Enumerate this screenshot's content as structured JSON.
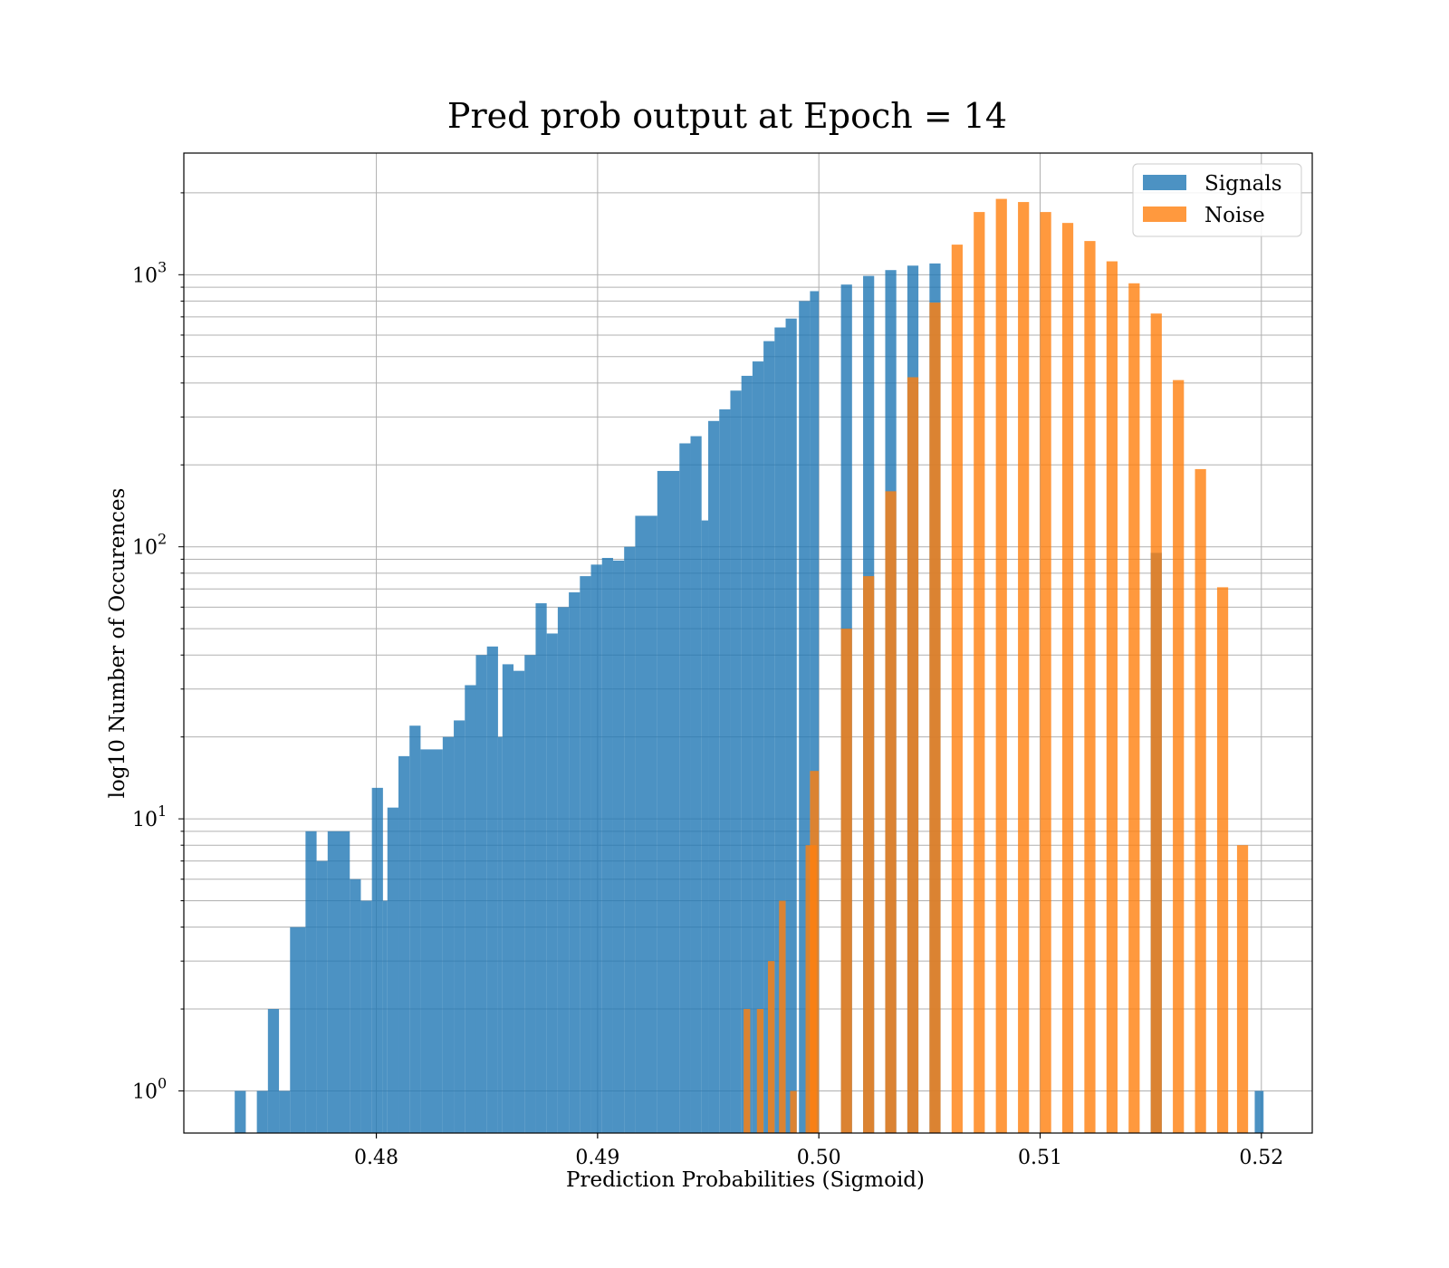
{
  "chart_data": {
    "type": "bar",
    "title": "Pred prob output at Epoch = 14",
    "xlabel": "Prediction Probabilities (Sigmoid)",
    "ylabel": "log10 Number of Occurences",
    "x_scale": "linear",
    "y_scale": "log",
    "xlim": [
      0.4713,
      0.5223
    ],
    "ylim": [
      0.7,
      2800
    ],
    "x_ticks": [
      0.48,
      0.49,
      0.5,
      0.51,
      0.52
    ],
    "x_tick_labels": [
      "0.48",
      "0.49",
      "0.50",
      "0.51",
      "0.52"
    ],
    "y_ticks": [
      1,
      10,
      100,
      1000
    ],
    "y_tick_labels": [
      {
        "base": "10",
        "exp": "0"
      },
      {
        "base": "10",
        "exp": "1"
      },
      {
        "base": "10",
        "exp": "2"
      },
      {
        "base": "10",
        "exp": "3"
      }
    ],
    "grid": true,
    "legend_position": "upper right",
    "series": [
      {
        "name": "Signals",
        "color": "#1f77b4",
        "opacity": 0.8,
        "bins": [
          [
            0.4736,
            0.4741,
            1
          ],
          [
            0.4746,
            0.4751,
            1
          ],
          [
            0.4751,
            0.4756,
            2
          ],
          [
            0.4756,
            0.4761,
            1
          ],
          [
            0.4761,
            0.4768,
            4
          ],
          [
            0.4768,
            0.4773,
            9
          ],
          [
            0.4773,
            0.4778,
            7
          ],
          [
            0.4778,
            0.4788,
            9
          ],
          [
            0.4788,
            0.4793,
            6
          ],
          [
            0.4793,
            0.4798,
            5
          ],
          [
            0.4798,
            0.4803,
            13
          ],
          [
            0.4803,
            0.4805,
            5
          ],
          [
            0.4805,
            0.481,
            11
          ],
          [
            0.481,
            0.4815,
            17
          ],
          [
            0.4815,
            0.482,
            22
          ],
          [
            0.482,
            0.483,
            18
          ],
          [
            0.483,
            0.4835,
            20
          ],
          [
            0.4835,
            0.484,
            23
          ],
          [
            0.484,
            0.4845,
            31
          ],
          [
            0.4845,
            0.485,
            40
          ],
          [
            0.485,
            0.4855,
            43
          ],
          [
            0.4855,
            0.4857,
            20
          ],
          [
            0.4857,
            0.4862,
            37
          ],
          [
            0.4862,
            0.4867,
            35
          ],
          [
            0.4867,
            0.4872,
            40
          ],
          [
            0.4872,
            0.4877,
            62
          ],
          [
            0.4877,
            0.4882,
            48
          ],
          [
            0.4882,
            0.4887,
            60
          ],
          [
            0.4887,
            0.4892,
            68
          ],
          [
            0.4892,
            0.4897,
            78
          ],
          [
            0.4897,
            0.4902,
            86
          ],
          [
            0.4902,
            0.4907,
            91
          ],
          [
            0.4907,
            0.4912,
            89
          ],
          [
            0.4912,
            0.4917,
            100
          ],
          [
            0.4917,
            0.4927,
            130
          ],
          [
            0.4927,
            0.4937,
            190
          ],
          [
            0.4937,
            0.4942,
            240
          ],
          [
            0.4942,
            0.4947,
            255
          ],
          [
            0.4947,
            0.495,
            125
          ],
          [
            0.495,
            0.4955,
            290
          ],
          [
            0.4955,
            0.496,
            320
          ],
          [
            0.496,
            0.4965,
            375
          ],
          [
            0.4965,
            0.497,
            425
          ],
          [
            0.497,
            0.4975,
            480
          ],
          [
            0.4975,
            0.498,
            570
          ],
          [
            0.498,
            0.4985,
            640
          ],
          [
            0.4985,
            0.499,
            690
          ],
          [
            0.4991,
            0.4996,
            800
          ],
          [
            0.4996,
            0.5,
            870
          ],
          [
            0.501,
            0.5015,
            920
          ],
          [
            0.502,
            0.5025,
            990
          ],
          [
            0.503,
            0.5035,
            1040
          ],
          [
            0.504,
            0.5045,
            1080
          ],
          [
            0.505,
            0.5055,
            1100
          ],
          [
            0.515,
            0.5155,
            95
          ],
          [
            0.5197,
            0.5201,
            1
          ]
        ]
      },
      {
        "name": "Noise",
        "color": "#ff7f0e",
        "opacity": 0.8,
        "bins": [
          [
            0.4966,
            0.4969,
            2
          ],
          [
            0.4972,
            0.4975,
            2
          ],
          [
            0.4977,
            0.498,
            3
          ],
          [
            0.4982,
            0.4985,
            5
          ],
          [
            0.4987,
            0.499,
            1
          ],
          [
            0.4994,
            0.4999,
            8
          ],
          [
            0.4996,
            0.5,
            15
          ],
          [
            0.501,
            0.5015,
            50
          ],
          [
            0.502,
            0.5025,
            78
          ],
          [
            0.503,
            0.5035,
            160
          ],
          [
            0.504,
            0.5045,
            420
          ],
          [
            0.505,
            0.5055,
            790
          ],
          [
            0.506,
            0.5065,
            1290
          ],
          [
            0.507,
            0.5075,
            1700
          ],
          [
            0.508,
            0.5085,
            1900
          ],
          [
            0.509,
            0.5095,
            1850
          ],
          [
            0.51,
            0.5105,
            1700
          ],
          [
            0.511,
            0.5115,
            1550
          ],
          [
            0.512,
            0.5125,
            1330
          ],
          [
            0.513,
            0.5135,
            1120
          ],
          [
            0.514,
            0.5145,
            930
          ],
          [
            0.515,
            0.5155,
            720
          ],
          [
            0.516,
            0.5165,
            410
          ],
          [
            0.517,
            0.5175,
            193
          ],
          [
            0.518,
            0.5185,
            71
          ],
          [
            0.5189,
            0.5194,
            8
          ]
        ]
      }
    ]
  }
}
